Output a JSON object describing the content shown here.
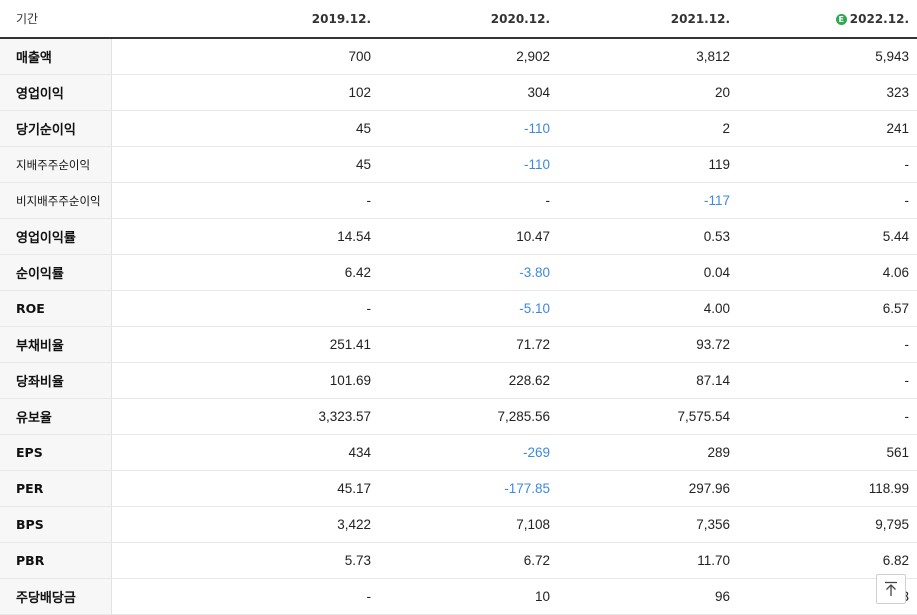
{
  "header": {
    "label": "기간",
    "estimate_mark": "E",
    "periods": [
      "2019.12.",
      "2020.12.",
      "2021.12.",
      "2022.12."
    ]
  },
  "rows": [
    {
      "label": "매출액",
      "values": [
        "700",
        "2,902",
        "3,812",
        "5,943"
      ]
    },
    {
      "label": "영업이익",
      "values": [
        "102",
        "304",
        "20",
        "323"
      ]
    },
    {
      "label": "당기순이익",
      "values": [
        "45",
        "-110",
        "2",
        "241"
      ]
    },
    {
      "label": "지배주주순이익",
      "values": [
        "45",
        "-110",
        "119",
        "-"
      ]
    },
    {
      "label": "비지배주주순이익",
      "values": [
        "-",
        "-",
        "-117",
        "-"
      ]
    },
    {
      "label": "영업이익률",
      "values": [
        "14.54",
        "10.47",
        "0.53",
        "5.44"
      ]
    },
    {
      "label": "순이익률",
      "values": [
        "6.42",
        "-3.80",
        "0.04",
        "4.06"
      ]
    },
    {
      "label": "ROE",
      "values": [
        "-",
        "-5.10",
        "4.00",
        "6.57"
      ]
    },
    {
      "label": "부채비율",
      "values": [
        "251.41",
        "71.72",
        "93.72",
        "-"
      ]
    },
    {
      "label": "당좌비율",
      "values": [
        "101.69",
        "228.62",
        "87.14",
        "-"
      ]
    },
    {
      "label": "유보율",
      "values": [
        "3,323.57",
        "7,285.56",
        "7,575.54",
        "-"
      ]
    },
    {
      "label": "EPS",
      "values": [
        "434",
        "-269",
        "289",
        "561"
      ]
    },
    {
      "label": "PER",
      "values": [
        "45.17",
        "-177.85",
        "297.96",
        "118.99"
      ]
    },
    {
      "label": "BPS",
      "values": [
        "3,422",
        "7,108",
        "7,356",
        "9,795"
      ]
    },
    {
      "label": "PBR",
      "values": [
        "5.73",
        "6.72",
        "11.70",
        "6.82"
      ]
    },
    {
      "label": "주당배당금",
      "values": [
        "-",
        "10",
        "96",
        "3"
      ]
    }
  ],
  "colors": {
    "negative": "#3d89dc",
    "estimate": "#2fa84f"
  },
  "scroll_top_icon": "arrow-up-to-line-icon"
}
